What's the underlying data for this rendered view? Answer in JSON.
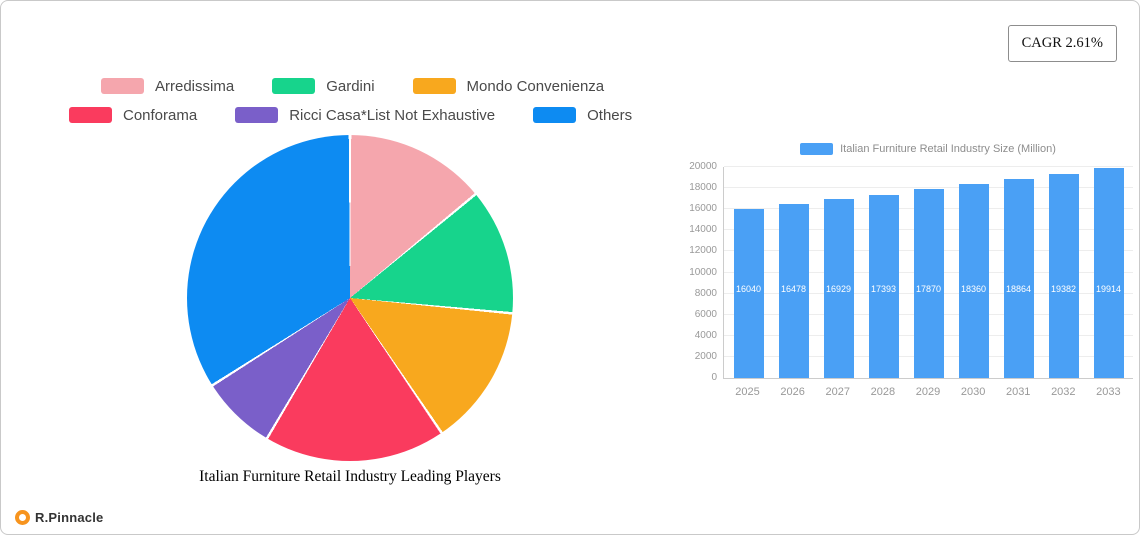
{
  "page": {
    "cagr_label": "CAGR 2.61%",
    "brand": "R.Pinnacle"
  },
  "chart_data": [
    {
      "type": "pie",
      "title": "Italian Furniture Retail Industry Leading Players",
      "labels": [
        "Arredissima",
        "Gardini",
        "Mondo Convenienza",
        "Conforama",
        "Ricci Casa*List Not Exhaustive",
        "Others"
      ],
      "values_percent": [
        14,
        12.5,
        14,
        18,
        7.5,
        34
      ],
      "colors": [
        "#f5a6ad",
        "#17d48c",
        "#f8a81e",
        "#fa3b5e",
        "#7a5fc9",
        "#0d8bf2"
      ],
      "legend_position": "top"
    },
    {
      "type": "bar",
      "title": "Italian Furniture Retail Industry Size (Million)",
      "categories": [
        "2025",
        "2026",
        "2027",
        "2028",
        "2029",
        "2030",
        "2031",
        "2032",
        "2033"
      ],
      "values": [
        16040,
        16478,
        16929,
        17393,
        17870,
        18360,
        18864,
        19382,
        19914
      ],
      "ylim": [
        0,
        20000
      ],
      "ytick_step": 2000,
      "bar_color": "#4aa0f5",
      "grid": true,
      "legend_position": "top"
    }
  ]
}
